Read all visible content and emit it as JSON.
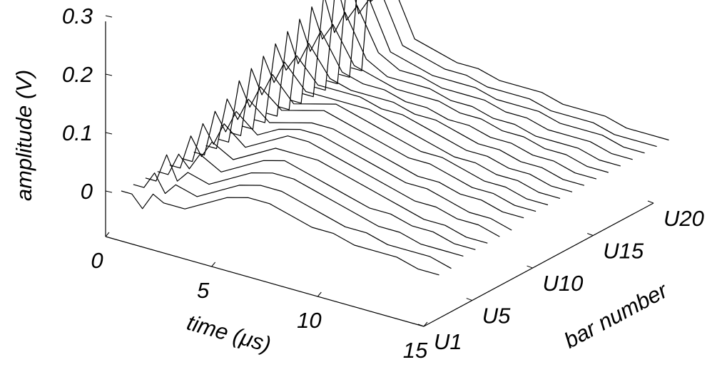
{
  "chart_data": {
    "type": "line",
    "projection": "3d-waterfall",
    "xlabel": "time (μs)",
    "ylabel": "bar number",
    "zlabel": "amplitude (V)",
    "x_ticks": [
      "0",
      "5",
      "10",
      "15"
    ],
    "x_tick_values": [
      0,
      5,
      10,
      15
    ],
    "y_ticks": [
      "U1",
      "U5",
      "U10",
      "U15",
      "U20"
    ],
    "y_tick_values": [
      1,
      5,
      10,
      15,
      20
    ],
    "z_ticks": [
      "0.3",
      "0.2",
      "0.1",
      "0"
    ],
    "z_tick_values": [
      0.3,
      0.2,
      0.1,
      0
    ],
    "xlim": [
      0,
      15
    ],
    "ylim": [
      1,
      20
    ],
    "zlim": [
      -0.05,
      0.3
    ],
    "grid": false,
    "series": [
      {
        "bar": 1,
        "x": [
          0,
          0.5,
          1,
          1.5,
          2,
          3,
          4,
          5,
          6,
          7,
          8,
          9,
          10,
          11,
          12,
          13,
          14,
          15
        ],
        "z": [
          0,
          0,
          -0.02,
          0.01,
          0.0,
          0.0,
          0.02,
          0.04,
          0.05,
          0.05,
          0.04,
          0.03,
          0.03,
          0.02,
          0.02,
          0.02,
          0.01,
          0.01
        ]
      },
      {
        "bar": 2,
        "x": [
          0,
          0.5,
          1,
          1.5,
          2,
          3,
          4,
          5,
          6,
          7,
          8,
          9,
          10,
          11,
          12,
          13,
          14,
          15
        ],
        "z": [
          0,
          0,
          0.03,
          0.0,
          0.02,
          0.01,
          0.03,
          0.05,
          0.06,
          0.06,
          0.05,
          0.04,
          0.03,
          0.03,
          0.02,
          0.02,
          0.02,
          0.01
        ]
      },
      {
        "bar": 3,
        "x": [
          0,
          0.5,
          1,
          1.5,
          2,
          3,
          4,
          5,
          6,
          7,
          8,
          9,
          10,
          11,
          12,
          13,
          14,
          15
        ],
        "z": [
          0,
          0,
          0.05,
          0.01,
          0.03,
          0.02,
          0.04,
          0.06,
          0.07,
          0.07,
          0.06,
          0.05,
          0.04,
          0.03,
          0.03,
          0.02,
          0.02,
          0.02
        ]
      },
      {
        "bar": 4,
        "x": [
          0,
          0.5,
          1,
          1.5,
          2,
          3,
          4,
          5,
          6,
          7,
          8,
          9,
          10,
          11,
          12,
          13,
          14,
          15
        ],
        "z": [
          0,
          0,
          0.04,
          0.02,
          0.05,
          0.03,
          0.05,
          0.07,
          0.08,
          0.07,
          0.06,
          0.05,
          0.04,
          0.04,
          0.03,
          0.03,
          0.02,
          0.02
        ]
      },
      {
        "bar": 5,
        "x": [
          0,
          0.5,
          1,
          1.5,
          2,
          3,
          4,
          5,
          6,
          7,
          8,
          9,
          10,
          11,
          12,
          13,
          14,
          15
        ],
        "z": [
          0,
          0,
          0.06,
          0.03,
          0.06,
          0.04,
          0.06,
          0.08,
          0.08,
          0.08,
          0.07,
          0.06,
          0.05,
          0.04,
          0.03,
          0.03,
          0.02,
          0.02
        ]
      },
      {
        "bar": 6,
        "x": [
          0,
          0.5,
          1,
          1.5,
          2,
          3,
          4,
          5,
          6,
          7,
          8,
          9,
          10,
          11,
          12,
          13,
          14,
          15
        ],
        "z": [
          0,
          0,
          0.07,
          0.04,
          0.08,
          0.05,
          0.07,
          0.09,
          0.09,
          0.08,
          0.07,
          0.06,
          0.05,
          0.04,
          0.04,
          0.03,
          0.03,
          0.02
        ]
      },
      {
        "bar": 7,
        "x": [
          0,
          0.5,
          1,
          1.5,
          2,
          3,
          4,
          5,
          6,
          7,
          8,
          9,
          10,
          11,
          12,
          13,
          14,
          15
        ],
        "z": [
          0,
          0,
          0.08,
          0.05,
          0.09,
          0.06,
          0.08,
          0.09,
          0.09,
          0.08,
          0.07,
          0.06,
          0.05,
          0.05,
          0.04,
          0.03,
          0.03,
          0.02
        ]
      },
      {
        "bar": 8,
        "x": [
          0,
          0.5,
          1,
          1.5,
          2,
          3,
          4,
          5,
          6,
          7,
          8,
          9,
          10,
          11,
          12,
          13,
          14,
          15
        ],
        "z": [
          0,
          0,
          0.09,
          0.06,
          0.1,
          0.07,
          0.08,
          0.09,
          0.09,
          0.08,
          0.07,
          0.06,
          0.05,
          0.05,
          0.04,
          0.04,
          0.03,
          0.03
        ]
      },
      {
        "bar": 9,
        "x": [
          0,
          0.5,
          1,
          1.5,
          2,
          3,
          4,
          5,
          6,
          7,
          8,
          9,
          10,
          11,
          12,
          13,
          14,
          15
        ],
        "z": [
          0,
          0,
          0.11,
          0.07,
          0.11,
          0.08,
          0.09,
          0.1,
          0.09,
          0.08,
          0.07,
          0.06,
          0.06,
          0.05,
          0.04,
          0.04,
          0.03,
          0.03
        ]
      },
      {
        "bar": 10,
        "x": [
          0,
          0.5,
          1,
          1.5,
          2,
          3,
          4,
          5,
          6,
          7,
          8,
          9,
          10,
          11,
          12,
          13,
          14,
          15
        ],
        "z": [
          0,
          0,
          0.12,
          0.08,
          0.12,
          0.08,
          0.09,
          0.1,
          0.09,
          0.08,
          0.07,
          0.06,
          0.06,
          0.05,
          0.04,
          0.04,
          0.03,
          0.03
        ]
      },
      {
        "bar": 11,
        "x": [
          0,
          0.5,
          1,
          1.5,
          2,
          3,
          4,
          5,
          6,
          7,
          8,
          9,
          10,
          11,
          12,
          13,
          14,
          15
        ],
        "z": [
          0,
          0,
          0.13,
          0.09,
          0.13,
          0.09,
          0.09,
          0.09,
          0.09,
          0.08,
          0.07,
          0.06,
          0.05,
          0.05,
          0.04,
          0.04,
          0.03,
          0.03
        ]
      },
      {
        "bar": 12,
        "x": [
          0,
          0.5,
          1,
          1.5,
          2,
          3,
          4,
          5,
          6,
          7,
          8,
          9,
          10,
          11,
          12,
          13,
          14,
          15
        ],
        "z": [
          0,
          0,
          0.14,
          0.1,
          0.13,
          0.09,
          0.09,
          0.09,
          0.08,
          0.08,
          0.07,
          0.06,
          0.05,
          0.05,
          0.04,
          0.04,
          0.03,
          0.03
        ]
      },
      {
        "bar": 13,
        "x": [
          0,
          0.5,
          1,
          1.5,
          2,
          3,
          4,
          5,
          6,
          7,
          8,
          9,
          10,
          11,
          12,
          13,
          14,
          15
        ],
        "z": [
          0,
          0,
          0.15,
          0.1,
          0.14,
          0.09,
          0.08,
          0.08,
          0.08,
          0.07,
          0.07,
          0.06,
          0.05,
          0.05,
          0.04,
          0.04,
          0.03,
          0.03
        ]
      },
      {
        "bar": 14,
        "x": [
          0,
          0.5,
          1,
          1.5,
          2,
          3,
          4,
          5,
          6,
          7,
          8,
          9,
          10,
          11,
          12,
          13,
          14,
          15
        ],
        "z": [
          0,
          0,
          0.16,
          0.11,
          0.15,
          0.09,
          0.08,
          0.08,
          0.07,
          0.07,
          0.06,
          0.06,
          0.05,
          0.05,
          0.04,
          0.04,
          0.03,
          0.03
        ]
      },
      {
        "bar": 15,
        "x": [
          0,
          0.5,
          1,
          1.5,
          2,
          3,
          4,
          5,
          6,
          7,
          8,
          9,
          10,
          11,
          12,
          13,
          14,
          15
        ],
        "z": [
          0,
          0,
          0.17,
          0.12,
          0.15,
          0.09,
          0.08,
          0.07,
          0.07,
          0.07,
          0.06,
          0.06,
          0.05,
          0.05,
          0.04,
          0.04,
          0.03,
          0.03
        ]
      },
      {
        "bar": 16,
        "x": [
          0,
          0.5,
          1,
          1.5,
          2,
          3,
          4,
          5,
          6,
          7,
          8,
          9,
          10,
          11,
          12,
          13,
          14,
          15
        ],
        "z": [
          0,
          0,
          0.18,
          0.12,
          0.16,
          0.09,
          0.07,
          0.07,
          0.07,
          0.06,
          0.06,
          0.05,
          0.05,
          0.04,
          0.04,
          0.04,
          0.03,
          0.03
        ]
      },
      {
        "bar": 17,
        "x": [
          0,
          0.5,
          1,
          1.5,
          2,
          3,
          4,
          5,
          6,
          7,
          8,
          9,
          10,
          11,
          12,
          13,
          14,
          15
        ],
        "z": [
          0,
          0,
          0.19,
          0.13,
          0.16,
          0.09,
          0.07,
          0.07,
          0.06,
          0.06,
          0.06,
          0.05,
          0.05,
          0.04,
          0.04,
          0.04,
          0.03,
          0.03
        ]
      },
      {
        "bar": 18,
        "x": [
          0,
          0.5,
          1,
          1.5,
          2,
          3,
          4,
          5,
          6,
          7,
          8,
          9,
          10,
          11,
          12,
          13,
          14,
          15
        ],
        "z": [
          0,
          0,
          0.2,
          0.13,
          0.16,
          0.08,
          0.07,
          0.06,
          0.06,
          0.06,
          0.05,
          0.05,
          0.05,
          0.04,
          0.04,
          0.04,
          0.03,
          0.03
        ]
      },
      {
        "bar": 19,
        "x": [
          0,
          0.5,
          1,
          1.5,
          2,
          3,
          4,
          5,
          6,
          7,
          8,
          9,
          10,
          11,
          12,
          13,
          14,
          15
        ],
        "z": [
          0,
          0,
          0.21,
          0.14,
          0.16,
          0.08,
          0.07,
          0.06,
          0.06,
          0.05,
          0.05,
          0.05,
          0.04,
          0.04,
          0.04,
          0.03,
          0.03,
          0.03
        ]
      },
      {
        "bar": 20,
        "x": [
          0,
          0.5,
          1,
          1.5,
          2,
          3,
          4,
          5,
          6,
          7,
          8,
          9,
          10,
          11,
          12,
          13,
          14,
          15
        ],
        "z": [
          0,
          0,
          0.22,
          0.14,
          0.16,
          0.08,
          0.07,
          0.06,
          0.06,
          0.05,
          0.05,
          0.05,
          0.04,
          0.04,
          0.04,
          0.03,
          0.03,
          0.03
        ]
      }
    ]
  }
}
